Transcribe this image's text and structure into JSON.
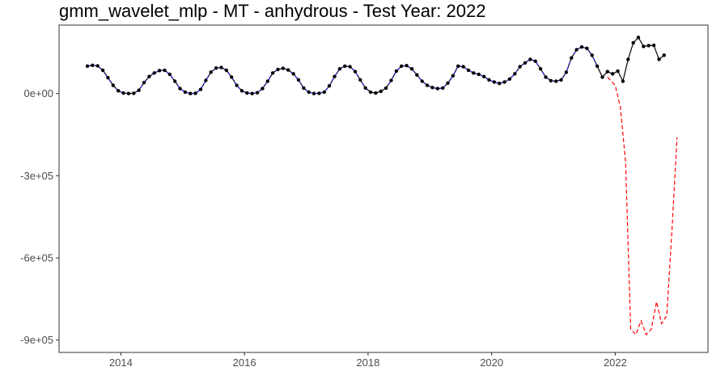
{
  "chart_data": {
    "type": "line",
    "title": "gmm_wavelet_mlp - MT - anhydrous - Test Year: 2022",
    "xlabel": "",
    "ylabel": "",
    "xlim": [
      2013.0,
      2023.5
    ],
    "ylim": [
      -945000,
      250000
    ],
    "x_ticks": [
      {
        "value": 2014,
        "label": "2014"
      },
      {
        "value": 2016,
        "label": "2016"
      },
      {
        "value": 2018,
        "label": "2018"
      },
      {
        "value": 2020,
        "label": "2020"
      },
      {
        "value": 2022,
        "label": "2022"
      }
    ],
    "y_ticks": [
      {
        "value": 0,
        "label": "0e+00"
      },
      {
        "value": -300000,
        "label": "-3e+05"
      },
      {
        "value": -600000,
        "label": "-6e+05"
      },
      {
        "value": -900000,
        "label": "-9e+05"
      }
    ],
    "grid": false,
    "legend": "none",
    "series": [
      {
        "style": "solid-black-with-points",
        "color": "#000000",
        "start_year": 2013.458,
        "step": 0.08333,
        "values": [
          100000,
          103000,
          101000,
          85000,
          58000,
          30000,
          10000,
          2000,
          0,
          1000,
          12000,
          40000,
          62000,
          75000,
          84000,
          85000,
          70000,
          45000,
          18000,
          5000,
          0,
          1000,
          15000,
          48000,
          78000,
          93000,
          95000,
          85000,
          60000,
          30000,
          10000,
          2000,
          0,
          3000,
          18000,
          45000,
          75000,
          88000,
          92000,
          86000,
          72000,
          50000,
          20000,
          5000,
          0,
          1000,
          5000,
          28000,
          62000,
          90000,
          100000,
          98000,
          80000,
          50000,
          20000,
          5000,
          2000,
          8000,
          20000,
          48000,
          82000,
          100000,
          102000,
          90000,
          68000,
          45000,
          30000,
          22000,
          18000,
          20000,
          38000,
          65000,
          100000,
          98000,
          85000,
          75000,
          70000,
          62000,
          50000,
          42000,
          37000,
          42000,
          53000,
          72000,
          98000,
          112000,
          125000,
          118000,
          90000,
          60000,
          47000,
          45000,
          50000,
          78000,
          130000,
          160000,
          170000,
          165000,
          140000,
          100000,
          60000,
          80000,
          72000,
          82000,
          45000,
          125000,
          185000,
          205000,
          172000,
          175000,
          176000,
          125000,
          140000
        ]
      },
      {
        "style": "dashed-blue",
        "color": "#1a1aff",
        "start_year": 2013.458,
        "step": 0.08333,
        "values": [
          100000,
          103000,
          101000,
          85000,
          58000,
          30000,
          10000,
          2000,
          0,
          1000,
          12000,
          40000,
          62000,
          75000,
          84000,
          85000,
          70000,
          45000,
          18000,
          5000,
          0,
          1000,
          15000,
          48000,
          78000,
          93000,
          95000,
          85000,
          60000,
          30000,
          10000,
          2000,
          0,
          3000,
          18000,
          45000,
          75000,
          88000,
          92000,
          86000,
          72000,
          50000,
          20000,
          5000,
          0,
          1000,
          5000,
          28000,
          62000,
          90000,
          100000,
          98000,
          80000,
          50000,
          20000,
          5000,
          2000,
          8000,
          20000,
          48000,
          82000,
          100000,
          102000,
          90000,
          68000,
          45000,
          30000,
          22000,
          18000,
          20000,
          38000,
          65000,
          100000,
          98000,
          85000,
          75000,
          70000,
          62000,
          50000,
          42000,
          37000,
          42000,
          53000,
          72000,
          98000,
          112000,
          125000,
          118000,
          90000,
          60000,
          47000,
          45000,
          50000,
          78000,
          130000,
          160000,
          170000,
          165000,
          140000,
          100000
        ]
      },
      {
        "style": "dashed-red",
        "color": "#ff0000",
        "x": [
          2021.875,
          2022.0,
          2022.083,
          2022.167,
          2022.25,
          2022.333,
          2022.417,
          2022.5,
          2022.583,
          2022.667,
          2022.75,
          2022.833,
          2022.917,
          2023.0
        ],
        "values": [
          60000,
          30000,
          -50000,
          -250000,
          -860000,
          -880000,
          -830000,
          -880000,
          -860000,
          -760000,
          -840000,
          -810000,
          -500000,
          -160000
        ]
      }
    ]
  }
}
